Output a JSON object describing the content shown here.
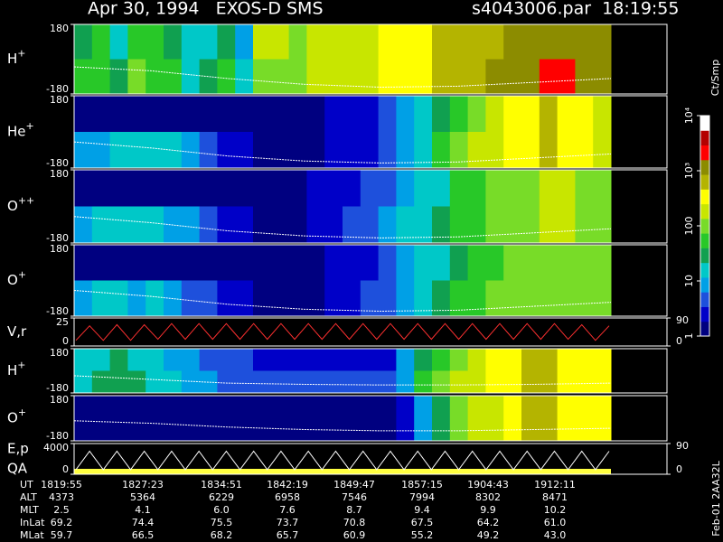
{
  "header": {
    "title": "Apr 30, 1994   EXOS-D SMS",
    "file_time": "s4043006.par  18:19:55"
  },
  "chart_data": [
    {
      "type": "heatmap",
      "label": {
        "ion": "H",
        "charge": "+"
      },
      "ylim": [
        -180,
        180
      ],
      "yticks": [
        -180,
        180
      ],
      "values": [
        [
          30,
          40,
          20,
          60,
          40,
          30,
          15,
          20,
          30,
          10,
          150,
          150,
          120,
          200,
          250,
          150,
          200,
          300,
          400,
          350,
          500,
          600,
          700,
          800,
          900,
          1200,
          1500,
          1500,
          1200,
          900
        ],
        [
          40,
          60,
          30,
          80,
          50,
          40,
          20,
          30,
          40,
          20,
          120,
          130,
          100,
          150,
          200,
          150,
          200,
          300,
          400,
          300,
          500,
          600,
          800,
          900,
          1000,
          1300,
          1600,
          1600,
          1300,
          1000
        ]
      ],
      "curve": {
        "color": "#ffffff",
        "values": [
          -40,
          -60,
          -100,
          -130,
          -145,
          -140,
          -120,
          -100
        ]
      }
    },
    {
      "type": "heatmap",
      "label": {
        "ion": "He",
        "charge": "+"
      },
      "ylim": [
        -180,
        180
      ],
      "yticks": [
        -180,
        180
      ],
      "values": [
        [
          1,
          1,
          1,
          1,
          1,
          1,
          1,
          1,
          1,
          1,
          1,
          1,
          1,
          1,
          2,
          2,
          3,
          4,
          8,
          15,
          30,
          60,
          100,
          200,
          300,
          400,
          500,
          400,
          300,
          200
        ],
        [
          8,
          10,
          12,
          15,
          15,
          12,
          10,
          5,
          3,
          2,
          1,
          1,
          1,
          1,
          2,
          3,
          3,
          5,
          10,
          20,
          40,
          80,
          150,
          250,
          350,
          450,
          500,
          400,
          300,
          200
        ]
      ],
      "curve": {
        "color": "#ffffff",
        "values": [
          -50,
          -80,
          -120,
          -145,
          -155,
          -150,
          -130,
          -110
        ]
      }
    },
    {
      "type": "heatmap",
      "label": {
        "ion": "O",
        "charge": "++"
      },
      "ylim": [
        -180,
        180
      ],
      "yticks": [
        -180,
        180
      ],
      "values": [
        [
          1,
          1,
          1,
          1,
          1,
          1,
          1,
          1,
          1,
          1,
          1,
          1,
          1,
          2,
          2,
          3,
          4,
          6,
          10,
          15,
          20,
          40,
          60,
          80,
          100,
          120,
          150,
          150,
          120,
          100
        ],
        [
          10,
          12,
          15,
          15,
          12,
          10,
          8,
          5,
          3,
          2,
          1,
          1,
          1,
          2,
          3,
          4,
          5,
          8,
          12,
          20,
          30,
          50,
          70,
          90,
          110,
          130,
          150,
          150,
          120,
          100
        ]
      ],
      "curve": {
        "color": "#ffffff",
        "values": [
          -50,
          -80,
          -120,
          -145,
          -155,
          -150,
          -130,
          -110
        ]
      }
    },
    {
      "type": "heatmap",
      "label": {
        "ion": "O",
        "charge": "+"
      },
      "ylim": [
        -180,
        180
      ],
      "yticks": [
        -180,
        180
      ],
      "values": [
        [
          1,
          1,
          1,
          1,
          1,
          1,
          1,
          1,
          1,
          1,
          1,
          1,
          1,
          1,
          2,
          2,
          3,
          5,
          8,
          12,
          20,
          30,
          50,
          70,
          90,
          110,
          130,
          130,
          110,
          90
        ],
        [
          10,
          12,
          12,
          10,
          12,
          8,
          6,
          4,
          3,
          2,
          1,
          1,
          1,
          1,
          2,
          3,
          4,
          6,
          10,
          15,
          25,
          40,
          60,
          80,
          100,
          120,
          130,
          130,
          110,
          90
        ]
      ],
      "curve": {
        "color": "#ffffff",
        "values": [
          -50,
          -80,
          -120,
          -145,
          -155,
          -150,
          -130,
          -110
        ]
      }
    },
    {
      "type": "line",
      "label": "V,r",
      "ylim": [
        0,
        25
      ],
      "yticks": [
        0,
        25
      ],
      "y2lim": [
        0,
        90
      ],
      "y2ticks": [
        0,
        90
      ],
      "series": [
        {
          "color": "#ff3030",
          "values": [
            5,
            18,
            5,
            19,
            5,
            19,
            6,
            20,
            6,
            20,
            6,
            20,
            6,
            20,
            6,
            20,
            6,
            20,
            6,
            20,
            6,
            20,
            6,
            20,
            6,
            20,
            6,
            20,
            6,
            20,
            6,
            20,
            6,
            20,
            6,
            20,
            6,
            19,
            5,
            18
          ]
        }
      ]
    },
    {
      "type": "heatmap",
      "label": {
        "ion": "H",
        "charge": "+"
      },
      "ylim": [
        -180,
        180
      ],
      "yticks": [
        -180,
        180
      ],
      "values": [
        [
          15,
          20,
          25,
          20,
          15,
          10,
          8,
          6,
          5,
          4,
          3,
          3,
          3,
          3,
          3,
          3,
          3,
          3,
          8,
          30,
          60,
          100,
          200,
          300,
          400,
          500,
          500,
          400,
          300,
          300
        ],
        [
          20,
          25,
          30,
          25,
          20,
          15,
          10,
          8,
          6,
          5,
          4,
          4,
          4,
          4,
          4,
          4,
          4,
          5,
          10,
          40,
          80,
          150,
          250,
          350,
          450,
          500,
          500,
          400,
          300,
          300
        ]
      ],
      "curve": {
        "color": "#ffffff",
        "values": [
          -40,
          -70,
          -100,
          -110,
          -115,
          -115,
          -110,
          -100
        ]
      }
    },
    {
      "type": "heatmap",
      "label": {
        "ion": "O",
        "charge": "+"
      },
      "ylim": [
        -180,
        180
      ],
      "yticks": [
        -180,
        180
      ],
      "values": [
        [
          1,
          1,
          1,
          1,
          1,
          1,
          1,
          1,
          1,
          1,
          1,
          1,
          1,
          1,
          1,
          1,
          1,
          1,
          3,
          10,
          30,
          80,
          150,
          250,
          400,
          600,
          500,
          400,
          300,
          300
        ],
        [
          1,
          1,
          1,
          1,
          1,
          1,
          1,
          1,
          1,
          1,
          1,
          1,
          1,
          1,
          1,
          1,
          1,
          1,
          3,
          10,
          30,
          80,
          150,
          250,
          400,
          600,
          500,
          400,
          300,
          300
        ]
      ],
      "curve": {
        "color": "#ffffff",
        "values": [
          -20,
          -40,
          -70,
          -90,
          -100,
          -100,
          -90,
          -80
        ]
      }
    },
    {
      "type": "line",
      "label": "E,p",
      "label2": "QA",
      "ylim": [
        0,
        4000
      ],
      "yticks": [
        0,
        4000
      ],
      "y2lim": [
        0,
        90
      ],
      "y2ticks": [
        0,
        90
      ],
      "series": [
        {
          "color": "#ffffff",
          "values": [
            600,
            3000,
            600,
            3000,
            600,
            3000,
            600,
            3000,
            600,
            3000,
            600,
            3000,
            600,
            3000,
            600,
            3000,
            600,
            3000,
            600,
            3000,
            600,
            3000,
            600,
            3000,
            600,
            3000,
            600,
            3000,
            600,
            3000,
            600,
            3000,
            600,
            3000,
            600,
            3000,
            600,
            3000,
            600,
            3000
          ]
        }
      ]
    }
  ],
  "colorbar": {
    "label": "Ct/Smp",
    "lim": [
      1,
      10000
    ],
    "log": true,
    "ticks": [
      1,
      10,
      100,
      {
        "value": 1000,
        "label": "10³"
      },
      {
        "value": 10000,
        "label": "10⁴"
      }
    ],
    "colors": [
      "#000080",
      "#0000c8",
      "#1e50dc",
      "#00a0e6",
      "#00c8c8",
      "#10a050",
      "#28c828",
      "#78dc28",
      "#c8e600",
      "#ffff00",
      "#b4b400",
      "#8c8c00",
      "#ff0000",
      "#b40000",
      "#ffffff"
    ]
  },
  "ephemeris": {
    "rows": [
      {
        "label": "UT",
        "values": [
          "1819:55",
          "1827:23",
          "1834:51",
          "1842:19",
          "1849:47",
          "1857:15",
          "1904:43",
          "1912:11"
        ]
      },
      {
        "label": "ALT",
        "values": [
          "4373",
          "5364",
          "6229",
          "6958",
          "7546",
          "7994",
          "8302",
          "8471"
        ]
      },
      {
        "label": "MLT",
        "values": [
          "2.5",
          "4.1",
          "6.0",
          "7.6",
          "8.7",
          "9.4",
          "9.9",
          "10.2"
        ]
      },
      {
        "label": "InLat",
        "values": [
          "69.2",
          "74.4",
          "75.5",
          "73.7",
          "70.8",
          "67.5",
          "64.2",
          "61.0"
        ]
      },
      {
        "label": "MLat",
        "values": [
          "59.7",
          "66.5",
          "68.2",
          "65.7",
          "60.9",
          "55.2",
          "49.2",
          "43.0"
        ]
      }
    ]
  },
  "footer_label": "Feb-01 2AA32L"
}
